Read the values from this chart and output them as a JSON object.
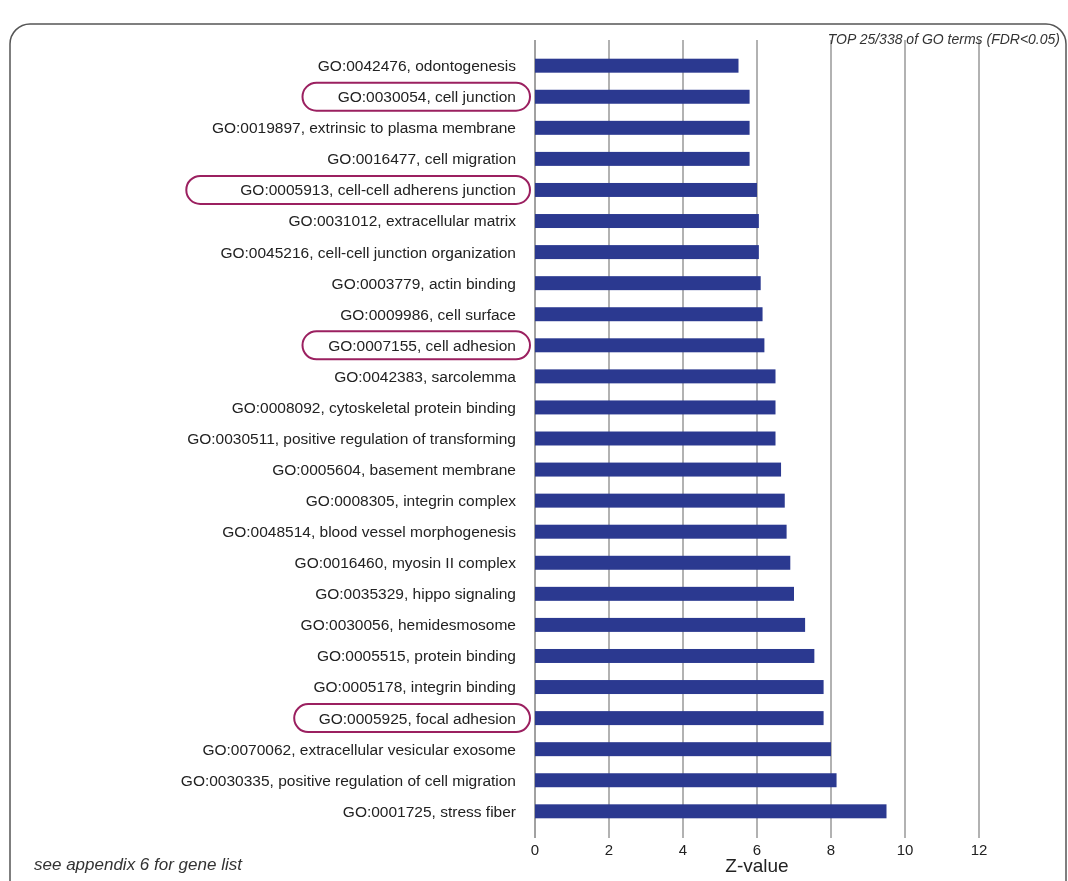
{
  "chart_data": {
    "type": "bar",
    "orientation": "horizontal",
    "xlabel": "Z-value",
    "categories": [
      "GO:0042476, odontogenesis",
      "GO:0030054, cell junction",
      "GO:0019897, extrinsic to plasma membrane",
      "GO:0016477, cell migration",
      "GO:0005913, cell-cell adherens junction",
      "GO:0031012, extracellular matrix",
      "GO:0045216, cell-cell junction organization",
      "GO:0003779, actin binding",
      "GO:0009986, cell surface",
      "GO:0007155, cell adhesion",
      "GO:0042383, sarcolemma",
      "GO:0008092, cytoskeletal protein binding",
      "GO:0030511, positive regulation of transforming",
      "GO:0005604, basement membrane",
      "GO:0008305, integrin complex",
      "GO:0048514, blood vessel morphogenesis",
      "GO:0016460, myosin II complex",
      "GO:0035329, hippo signaling",
      "GO:0030056, hemidesmosome",
      "GO:0005515, protein binding",
      "GO:0005178, integrin binding",
      "GO:0005925, focal adhesion",
      "GO:0070062, extracellular vesicular exosome",
      "GO:0030335, positive regulation of cell migration",
      "GO:0001725, stress fiber"
    ],
    "values": [
      5.5,
      5.8,
      5.8,
      5.8,
      6.0,
      6.05,
      6.05,
      6.1,
      6.15,
      6.2,
      6.5,
      6.5,
      6.5,
      6.65,
      6.75,
      6.8,
      6.9,
      7.0,
      7.3,
      7.55,
      7.8,
      7.8,
      8.0,
      8.15,
      9.5
    ],
    "color": "#2b3990",
    "xlim": [
      0,
      12
    ],
    "xticks": [
      0,
      2,
      4,
      6,
      8,
      10,
      12
    ],
    "grid": "x",
    "annotations": [
      "TOP 25/338 of GO terms (FDR<0.05)",
      "see appendix 6 for gene list"
    ]
  }
}
